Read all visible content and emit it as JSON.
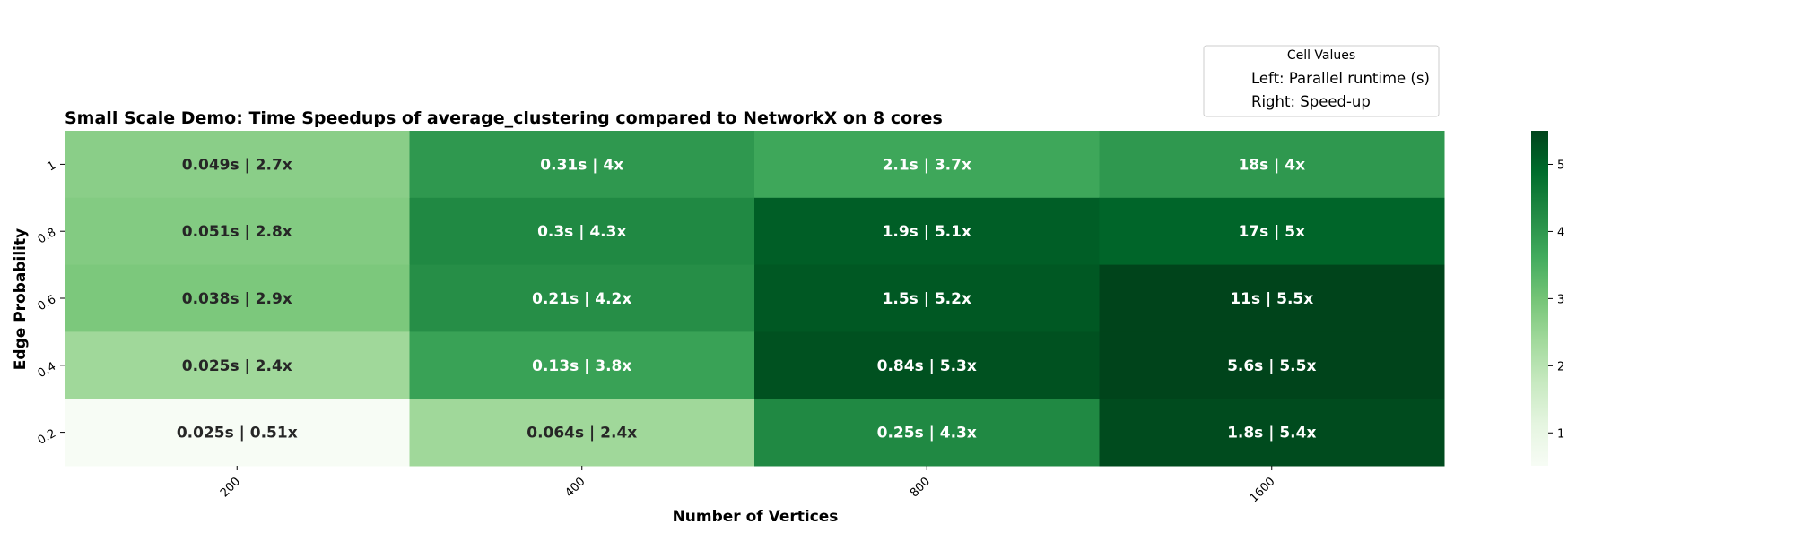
{
  "chart_data": {
    "type": "heatmap",
    "title": "Small Scale Demo: Time Speedups of average_clustering compared to NetworkX on 8 cores",
    "xlabel": "Number of Vertices",
    "ylabel": "Edge Probability",
    "x_categories": [
      "200",
      "400",
      "800",
      "1600"
    ],
    "y_categories": [
      "1",
      "0.8",
      "0.6",
      "0.4",
      "0.2"
    ],
    "cells": [
      [
        {
          "runtime": "0.049s",
          "speedup": 2.7
        },
        {
          "runtime": "0.31s",
          "speedup": 4.0
        },
        {
          "runtime": "2.1s",
          "speedup": 3.7
        },
        {
          "runtime": "18s",
          "speedup": 4.0
        }
      ],
      [
        {
          "runtime": "0.051s",
          "speedup": 2.8
        },
        {
          "runtime": "0.3s",
          "speedup": 4.3
        },
        {
          "runtime": "1.9s",
          "speedup": 5.1
        },
        {
          "runtime": "17s",
          "speedup": 5.0
        }
      ],
      [
        {
          "runtime": "0.038s",
          "speedup": 2.9
        },
        {
          "runtime": "0.21s",
          "speedup": 4.2
        },
        {
          "runtime": "1.5s",
          "speedup": 5.2
        },
        {
          "runtime": "11s",
          "speedup": 5.5
        }
      ],
      [
        {
          "runtime": "0.025s",
          "speedup": 2.4
        },
        {
          "runtime": "0.13s",
          "speedup": 3.8
        },
        {
          "runtime": "0.84s",
          "speedup": 5.3
        },
        {
          "runtime": "5.6s",
          "speedup": 5.5
        }
      ],
      [
        {
          "runtime": "0.025s",
          "speedup": 0.51
        },
        {
          "runtime": "0.064s",
          "speedup": 2.4
        },
        {
          "runtime": "0.25s",
          "speedup": 4.3
        },
        {
          "runtime": "1.8s",
          "speedup": 5.4
        }
      ]
    ],
    "cell_labels": [
      [
        "0.049s | 2.7x",
        "0.31s | 4x",
        "2.1s | 3.7x",
        "18s | 4x"
      ],
      [
        "0.051s | 2.8x",
        "0.3s | 4.3x",
        "1.9s | 5.1x",
        "17s | 5x"
      ],
      [
        "0.038s | 2.9x",
        "0.21s | 4.2x",
        "1.5s | 5.2x",
        "11s | 5.5x"
      ],
      [
        "0.025s | 2.4x",
        "0.13s | 3.8x",
        "0.84s | 5.3x",
        "5.6s | 5.5x"
      ],
      [
        "0.025s | 0.51x",
        "0.064s | 2.4x",
        "0.25s | 4.3x",
        "1.8s | 5.4x"
      ]
    ],
    "colorbar": {
      "min": 0.51,
      "max": 5.5,
      "ticks": [
        1,
        2,
        3,
        4,
        5
      ],
      "colormap": "Greens"
    },
    "legend": {
      "title": "Cell Values",
      "entries": [
        "Left: Parallel runtime (s)",
        "Right: Speed-up"
      ],
      "placement": "top-right"
    }
  }
}
